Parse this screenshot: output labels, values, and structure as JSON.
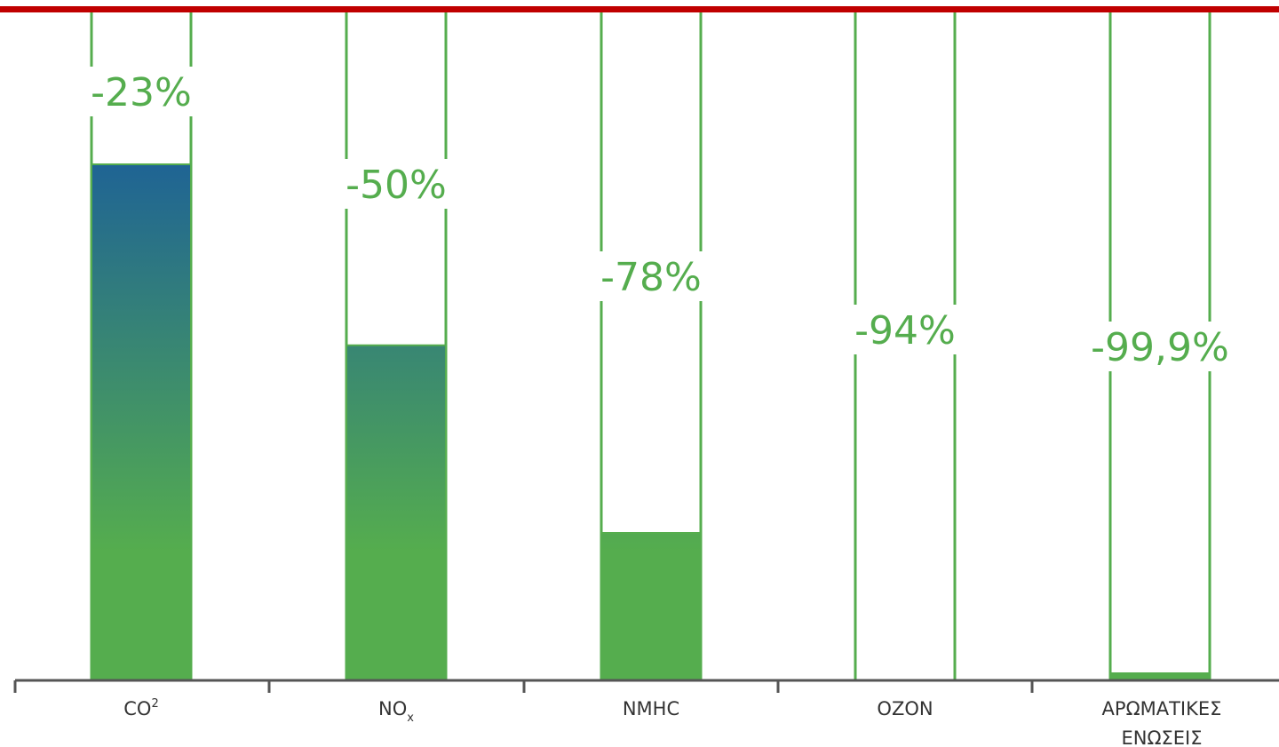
{
  "chart_data": {
    "type": "bar",
    "title": "",
    "xlabel": "",
    "ylabel": "",
    "ylim": [
      0,
      100
    ],
    "categories": [
      {
        "main": "CO",
        "sup": "2",
        "sub": ""
      },
      {
        "main": "NO",
        "sup": "",
        "sub": "x"
      },
      {
        "main": "NMHC",
        "sup": "",
        "sub": ""
      },
      {
        "main": "OZON",
        "sup": "",
        "sub": ""
      },
      {
        "lines": [
          "ΑΡΩΜΑΤΙΚΕΣ",
          "ΕΝΩΣΕΙΣ"
        ]
      }
    ],
    "values": [
      77,
      50,
      22,
      0,
      0.1
    ],
    "labels": [
      "-23%",
      "-50%",
      "-78%",
      "-94%",
      "-99,9%"
    ],
    "grid": false,
    "legend": "none"
  },
  "colors": {
    "accent_line": "#c00000",
    "bar_green": "#55ad4e",
    "bar_blue": "#1f6494",
    "outline": "#55ad4e",
    "label": "#55ad4e",
    "axis": "#555555",
    "text": "#333333"
  }
}
